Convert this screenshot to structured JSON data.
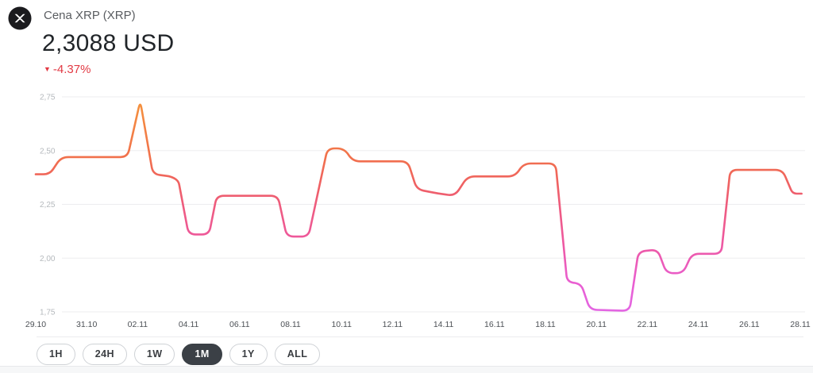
{
  "header": {
    "title": "Cena XRP (XRP)",
    "price": "2,3088 USD",
    "change": "-4.37%",
    "change_direction": "down",
    "change_icon": "▼",
    "change_color": "#e23a44"
  },
  "chart_data": {
    "type": "line",
    "title": "Cena XRP (XRP)",
    "currency": "USD",
    "grid": "horizontal-only",
    "y_axis": {
      "range": [
        1.75,
        2.75
      ],
      "ticks": [
        {
          "value": 2.75,
          "label": "2,75"
        },
        {
          "value": 2.5,
          "label": "2,50"
        },
        {
          "value": 2.25,
          "label": "2,25"
        },
        {
          "value": 2.0,
          "label": "2,00"
        },
        {
          "value": 1.75,
          "label": "1,75"
        }
      ]
    },
    "x_axis": {
      "range_days": [
        0,
        30
      ],
      "tick_interval_days": 2,
      "tick_labels": [
        "29.10",
        "31.10",
        "02.11",
        "04.11",
        "06.11",
        "08.11",
        "10.11",
        "12.11",
        "14.11",
        "16.11",
        "18.11",
        "20.11",
        "22.11",
        "24.11",
        "26.11",
        "28.11"
      ]
    },
    "series": {
      "points": [
        [
          0.0,
          2.39
        ],
        [
          0.55,
          2.39
        ],
        [
          1.0,
          2.47
        ],
        [
          3.6,
          2.47
        ],
        [
          4.1,
          2.73
        ],
        [
          4.6,
          2.39
        ],
        [
          5.3,
          2.38
        ],
        [
          5.6,
          2.36
        ],
        [
          6.0,
          2.11
        ],
        [
          6.8,
          2.11
        ],
        [
          7.1,
          2.29
        ],
        [
          9.5,
          2.29
        ],
        [
          9.85,
          2.1
        ],
        [
          10.7,
          2.1
        ],
        [
          11.45,
          2.51
        ],
        [
          12.1,
          2.51
        ],
        [
          12.45,
          2.45
        ],
        [
          14.6,
          2.45
        ],
        [
          14.95,
          2.32
        ],
        [
          15.8,
          2.3
        ],
        [
          16.45,
          2.29
        ],
        [
          16.95,
          2.38
        ],
        [
          18.8,
          2.38
        ],
        [
          19.15,
          2.44
        ],
        [
          20.4,
          2.44
        ],
        [
          20.85,
          1.89
        ],
        [
          21.4,
          1.88
        ],
        [
          21.75,
          1.76
        ],
        [
          23.3,
          1.755
        ],
        [
          23.65,
          2.03
        ],
        [
          24.4,
          2.04
        ],
        [
          24.75,
          1.93
        ],
        [
          25.4,
          1.93
        ],
        [
          25.75,
          2.02
        ],
        [
          26.9,
          2.02
        ],
        [
          27.25,
          2.41
        ],
        [
          29.3,
          2.41
        ],
        [
          29.7,
          2.3
        ],
        [
          30.05,
          2.3
        ]
      ]
    },
    "line_gradient": [
      {
        "offset": 0.0,
        "color": "#f5953c"
      },
      {
        "offset": 0.28,
        "color": "#f1714c"
      },
      {
        "offset": 0.42,
        "color": "#ef6065"
      },
      {
        "offset": 0.5,
        "color": "#ee5c7d"
      },
      {
        "offset": 0.66,
        "color": "#ee589c"
      },
      {
        "offset": 0.87,
        "color": "#e95ed2"
      },
      {
        "offset": 1.0,
        "color": "#e366e3"
      }
    ],
    "grid_color": "#ededef",
    "y_label_color": "#b5b9bd"
  },
  "ranges": {
    "options": [
      {
        "label": "1H",
        "active": false
      },
      {
        "label": "24H",
        "active": false
      },
      {
        "label": "1W",
        "active": false
      },
      {
        "label": "1M",
        "active": true
      },
      {
        "label": "1Y",
        "active": false
      },
      {
        "label": "ALL",
        "active": false
      }
    ]
  }
}
